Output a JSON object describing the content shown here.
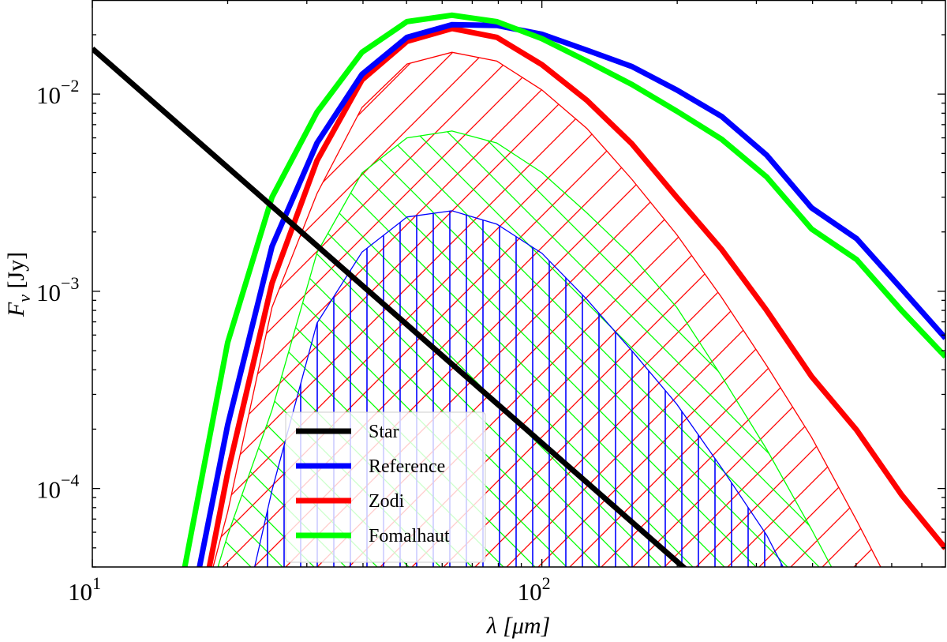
{
  "chart_data": {
    "type": "line",
    "title": "",
    "xlabel": "λ [μm]",
    "ylabel": "F_ν [Jy]",
    "xscale": "log",
    "yscale": "log",
    "xlim": [
      10,
      790
    ],
    "ylim": [
      4e-05,
      0.03
    ],
    "grid": false,
    "legend_placement": "lower-center",
    "x_ticks": [
      {
        "base": "10",
        "exp": "1",
        "value": 10
      },
      {
        "base": "10",
        "exp": "2",
        "value": 100
      }
    ],
    "y_ticks": [
      {
        "base": "10",
        "exp": "−2",
        "value": 0.01
      },
      {
        "base": "10",
        "exp": "−3",
        "value": 0.001
      },
      {
        "base": "10",
        "exp": "−4",
        "value": 0.0001
      }
    ],
    "x": [
      15.8,
      20.0,
      25.1,
      31.6,
      39.8,
      50.1,
      63.1,
      79.4,
      100,
      125.9,
      158.5,
      199.5,
      251.2,
      316.2,
      398.1,
      501.2,
      631.0,
      794.3
    ],
    "series": [
      {
        "name": "Star",
        "color": "#000000",
        "x": [
          10,
          1000
        ],
        "values": [
          0.017,
          1.7e-06
        ]
      },
      {
        "name": "Reference",
        "color": "#0000ff",
        "values": [
          1.4e-05,
          0.00021,
          0.00169,
          0.00565,
          0.0126,
          0.0194,
          0.0225,
          0.0223,
          0.0201,
          0.0167,
          0.0138,
          0.0105,
          0.0077,
          0.0049,
          0.00265,
          0.00185,
          0.00103,
          0.00057
        ]
      },
      {
        "name": "Zodi",
        "color": "#ff0000",
        "values": [
          7.6e-06,
          0.00012,
          0.0011,
          0.0046,
          0.0118,
          0.0185,
          0.0215,
          0.0194,
          0.0141,
          0.0093,
          0.0056,
          0.003,
          0.00163,
          0.0008,
          0.00037,
          0.000198,
          9.3e-05,
          4.9e-05
        ]
      },
      {
        "name": "Fomalhaut",
        "color": "#00ff00",
        "values": [
          3.3e-05,
          0.00055,
          0.003,
          0.0081,
          0.0163,
          0.0233,
          0.0251,
          0.0233,
          0.0191,
          0.0147,
          0.0112,
          0.0082,
          0.0059,
          0.0038,
          0.00207,
          0.00145,
          0.0008,
          0.00046
        ]
      }
    ],
    "hatched_regions": [
      {
        "series": "Zodi",
        "color": "#ff0000",
        "hatch": "/",
        "upper": [
          1e-05,
          7.6e-05,
          0.00083,
          0.00313,
          0.00855,
          0.0142,
          0.0163,
          0.0147,
          0.0105,
          0.0067,
          0.0037,
          0.00194,
          0.00093,
          0.00042,
          0.000182,
          6.9e-05,
          2.5e-05,
          1e-05
        ]
      },
      {
        "series": "Fomalhaut",
        "color": "#00ff00",
        "hatch": "\\",
        "upper": [
          1e-05,
          5.8e-05,
          0.00025,
          0.00157,
          0.00398,
          0.006,
          0.0065,
          0.00565,
          0.004,
          0.0025,
          0.00151,
          0.00083,
          0.00037,
          0.000158,
          6.2e-05,
          2.3e-05,
          1e-05,
          1e-05
        ]
      },
      {
        "series": "Reference",
        "color": "#0000ff",
        "hatch": "|",
        "upper": [
          1e-05,
          1e-05,
          9.8e-05,
          0.00069,
          0.00158,
          0.00238,
          0.00256,
          0.00219,
          0.00156,
          0.00091,
          0.0005,
          0.000268,
          0.000127,
          5.8e-05,
          2.1e-05,
          1e-05,
          1e-05,
          1e-05
        ]
      }
    ],
    "legend": [
      "Star",
      "Reference",
      "Zodi",
      "Fomalhaut"
    ]
  }
}
